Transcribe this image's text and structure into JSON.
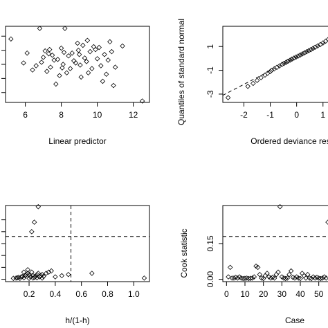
{
  "chart_data": [
    {
      "type": "scatter",
      "xlabel": "Linear predictor",
      "ylabel": "",
      "xlim": [
        4.9,
        12.9
      ],
      "ylim": [
        -2.7,
        2.7
      ],
      "x_ticks": [
        6,
        8,
        10,
        12
      ],
      "y_ticks": [
        -2,
        -1,
        0,
        1,
        2
      ],
      "y_ticklabels_visible": false,
      "points": [
        [
          5.2,
          1.8
        ],
        [
          6.8,
          2.55
        ],
        [
          8.2,
          2.55
        ],
        [
          8.9,
          1.5
        ],
        [
          8.0,
          1.15
        ],
        [
          9.2,
          1.35
        ],
        [
          9.8,
          1.25
        ],
        [
          10.1,
          1.2
        ],
        [
          11.4,
          1.3
        ],
        [
          12.5,
          -2.6
        ],
        [
          6.1,
          0.8
        ],
        [
          7.3,
          0.75
        ],
        [
          8.6,
          0.8
        ],
        [
          9.6,
          0.9
        ],
        [
          10.4,
          0.7
        ],
        [
          10.8,
          0.9
        ],
        [
          5.9,
          0.1
        ],
        [
          7.0,
          0.5
        ],
        [
          7.6,
          0.3
        ],
        [
          8.4,
          0.6
        ],
        [
          9.0,
          0.7
        ],
        [
          9.4,
          0.2
        ],
        [
          10.0,
          0.4
        ],
        [
          10.6,
          0.3
        ],
        [
          6.6,
          -0.1
        ],
        [
          7.4,
          -0.2
        ],
        [
          8.1,
          0.0
        ],
        [
          8.8,
          0.1
        ],
        [
          9.7,
          -0.3
        ],
        [
          10.2,
          -0.1
        ],
        [
          7.2,
          -0.5
        ],
        [
          7.9,
          -0.8
        ],
        [
          8.3,
          -0.6
        ],
        [
          9.1,
          -0.9
        ],
        [
          10.3,
          -1.2
        ],
        [
          10.9,
          -1.5
        ],
        [
          7.7,
          -1.4
        ],
        [
          8.5,
          -0.3
        ],
        [
          9.3,
          0.45
        ],
        [
          6.9,
          0.15
        ],
        [
          7.8,
          0.35
        ],
        [
          8.7,
          0.25
        ],
        [
          9.5,
          -0.6
        ],
        [
          10.5,
          -0.7
        ],
        [
          11.0,
          -0.2
        ],
        [
          7.5,
          0.65
        ],
        [
          8.95,
          1.0
        ],
        [
          9.9,
          1.05
        ],
        [
          6.4,
          -0.4
        ],
        [
          8.05,
          -0.25
        ],
        [
          9.05,
          -0.05
        ],
        [
          7.1,
          0.95
        ],
        [
          8.15,
          0.85
        ],
        [
          9.45,
          1.7
        ],
        [
          10.7,
          1.6
        ],
        [
          7.35,
          1.05
        ]
      ]
    },
    {
      "type": "scatter",
      "xlabel": "Ordered deviance res",
      "ylabel": "Quantiles of standard normal",
      "xlim": [
        -2.8,
        1.4
      ],
      "ylim": [
        -3.7,
        2.7
      ],
      "x_ticks": [
        -2,
        -1,
        0,
        1
      ],
      "y_ticks": [
        -3,
        -1,
        1
      ],
      "ref_line": {
        "slope": 1.15,
        "intercept": 0.12
      },
      "points": [
        [
          -2.6,
          -3.3
        ],
        [
          -1.85,
          -2.35
        ],
        [
          -1.65,
          -2.1
        ],
        [
          -1.5,
          -1.85
        ],
        [
          -1.35,
          -1.62
        ],
        [
          -1.2,
          -1.4
        ],
        [
          -1.1,
          -1.25
        ],
        [
          -1.0,
          -1.1
        ],
        [
          -0.95,
          -1.0
        ],
        [
          -0.85,
          -0.88
        ],
        [
          -0.75,
          -0.75
        ],
        [
          -0.65,
          -0.63
        ],
        [
          -0.55,
          -0.5
        ],
        [
          -0.48,
          -0.42
        ],
        [
          -0.4,
          -0.33
        ],
        [
          -0.33,
          -0.24
        ],
        [
          -0.25,
          -0.15
        ],
        [
          -0.18,
          -0.06
        ],
        [
          -0.1,
          0.03
        ],
        [
          -0.02,
          0.12
        ],
        [
          0.06,
          0.2
        ],
        [
          0.14,
          0.29
        ],
        [
          0.22,
          0.38
        ],
        [
          0.3,
          0.47
        ],
        [
          0.38,
          0.56
        ],
        [
          0.46,
          0.65
        ],
        [
          0.54,
          0.74
        ],
        [
          0.62,
          0.84
        ],
        [
          0.7,
          0.94
        ],
        [
          0.8,
          1.05
        ],
        [
          0.9,
          1.17
        ],
        [
          1.0,
          1.3
        ],
        [
          1.1,
          1.45
        ],
        [
          1.2,
          1.6
        ],
        [
          1.3,
          1.78
        ],
        [
          1.38,
          2.0
        ]
      ]
    },
    {
      "type": "scatter",
      "xlabel": "h/(1-h)",
      "ylabel": "",
      "xlim": [
        0.02,
        1.12
      ],
      "ylim": [
        -0.01,
        0.31
      ],
      "x_ticks": [
        0.2,
        0.4,
        0.6,
        0.8,
        1.0
      ],
      "x_ticklabels": [
        "0.2",
        "0.4",
        "0.6",
        "0.8",
        "1.0"
      ],
      "y_ticks": [
        0.0,
        0.05,
        0.1,
        0.15,
        0.2,
        0.25
      ],
      "y_ticklabels_visible": false,
      "hline": 0.18,
      "vline": 0.52,
      "points": [
        [
          0.27,
          0.305
        ],
        [
          0.24,
          0.24
        ],
        [
          0.22,
          0.2
        ],
        [
          0.68,
          0.025
        ],
        [
          1.08,
          0.005
        ],
        [
          0.1,
          0.005
        ],
        [
          0.12,
          0.008
        ],
        [
          0.14,
          0.01
        ],
        [
          0.15,
          0.012
        ],
        [
          0.17,
          0.015
        ],
        [
          0.18,
          0.02
        ],
        [
          0.19,
          0.025
        ],
        [
          0.2,
          0.018
        ],
        [
          0.21,
          0.01
        ],
        [
          0.22,
          0.03
        ],
        [
          0.23,
          0.015
        ],
        [
          0.24,
          0.008
        ],
        [
          0.25,
          0.012
        ],
        [
          0.26,
          0.02
        ],
        [
          0.27,
          0.025
        ],
        [
          0.28,
          0.01
        ],
        [
          0.29,
          0.015
        ],
        [
          0.3,
          0.02
        ],
        [
          0.31,
          0.012
        ],
        [
          0.33,
          0.025
        ],
        [
          0.35,
          0.03
        ],
        [
          0.37,
          0.035
        ],
        [
          0.4,
          0.01
        ],
        [
          0.45,
          0.015
        ],
        [
          0.5,
          0.02
        ],
        [
          0.08,
          0.004
        ],
        [
          0.11,
          0.006
        ],
        [
          0.13,
          0.004
        ],
        [
          0.16,
          0.006
        ],
        [
          0.2,
          0.004
        ],
        [
          0.23,
          0.005
        ],
        [
          0.26,
          0.006
        ],
        [
          0.19,
          0.04
        ],
        [
          0.16,
          0.03
        ],
        [
          0.3,
          0.005
        ]
      ]
    },
    {
      "type": "scatter",
      "xlabel": "Case",
      "ylabel": "Cook statistic",
      "xlim": [
        -2,
        58
      ],
      "ylim": [
        -0.01,
        0.31
      ],
      "x_ticks": [
        0,
        10,
        20,
        30,
        40,
        50
      ],
      "x_ticklabels": [
        "0",
        "10",
        "20",
        "30",
        "40",
        "50"
      ],
      "y_ticks": [
        0.0,
        0.15
      ],
      "y_ticklabels": [
        "0.00",
        "0.15"
      ],
      "hline": 0.18,
      "points": [
        [
          1,
          0.01
        ],
        [
          2,
          0.05
        ],
        [
          3,
          0.005
        ],
        [
          4,
          0.005
        ],
        [
          5,
          0.008
        ],
        [
          6,
          0.005
        ],
        [
          7,
          0.01
        ],
        [
          8,
          0.005
        ],
        [
          9,
          0.003
        ],
        [
          10,
          0.004
        ],
        [
          11,
          0.005
        ],
        [
          12,
          0.003
        ],
        [
          13,
          0.004
        ],
        [
          14,
          0.005
        ],
        [
          15,
          0.01
        ],
        [
          16,
          0.055
        ],
        [
          17,
          0.05
        ],
        [
          18,
          0.02
        ],
        [
          19,
          0.005
        ],
        [
          20,
          0.003
        ],
        [
          21,
          0.015
        ],
        [
          22,
          0.025
        ],
        [
          23,
          0.01
        ],
        [
          24,
          0.005
        ],
        [
          25,
          0.008
        ],
        [
          26,
          0.005
        ],
        [
          27,
          0.02
        ],
        [
          28,
          0.03
        ],
        [
          29,
          0.305
        ],
        [
          30,
          0.01
        ],
        [
          31,
          0.005
        ],
        [
          32,
          0.003
        ],
        [
          33,
          0.005
        ],
        [
          34,
          0.02
        ],
        [
          35,
          0.035
        ],
        [
          36,
          0.008
        ],
        [
          37,
          0.005
        ],
        [
          38,
          0.01
        ],
        [
          39,
          0.005
        ],
        [
          40,
          0.003
        ],
        [
          41,
          0.025
        ],
        [
          42,
          0.015
        ],
        [
          43,
          0.005
        ],
        [
          44,
          0.02
        ],
        [
          45,
          0.005
        ],
        [
          46,
          0.003
        ],
        [
          47,
          0.01
        ],
        [
          48,
          0.005
        ],
        [
          49,
          0.008
        ],
        [
          50,
          0.005
        ],
        [
          51,
          0.003
        ],
        [
          52,
          0.005
        ],
        [
          53,
          0.01
        ],
        [
          54,
          0.005
        ],
        [
          55,
          0.24
        ]
      ]
    }
  ]
}
